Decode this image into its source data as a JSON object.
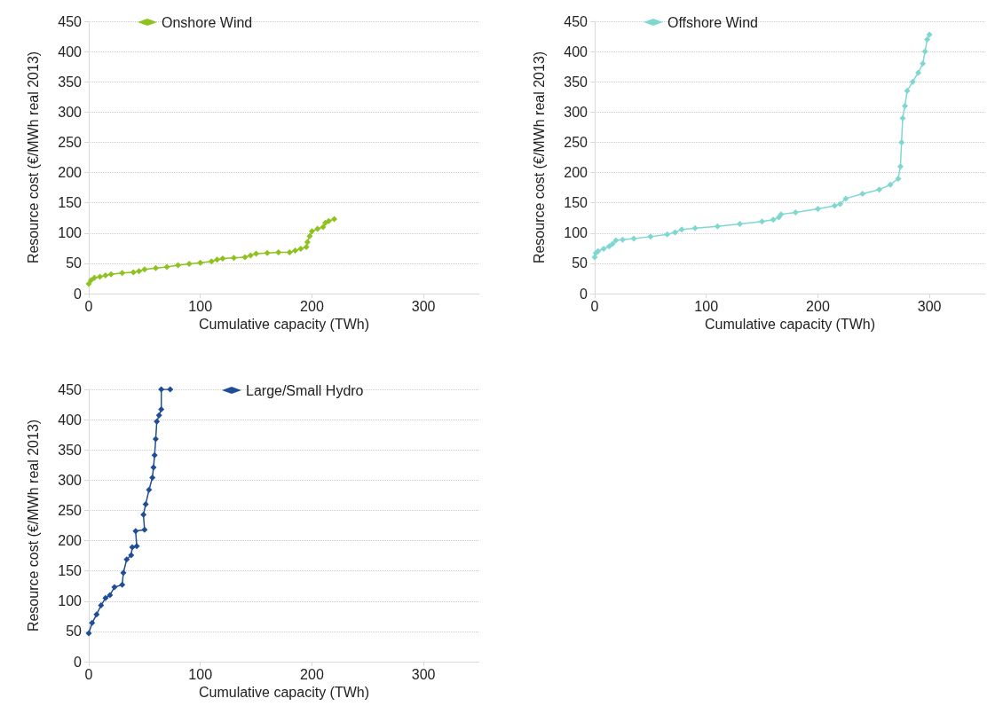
{
  "chart_data": [
    {
      "type": "line",
      "xlabel": "Cumulative capacity (TWh)",
      "ylabel": "Resource cost (€/MWh real 2013)",
      "xlim": [
        0,
        350
      ],
      "xticks": [
        0,
        100,
        200,
        300
      ],
      "ylim": [
        0,
        450
      ],
      "yticks": [
        0,
        50,
        100,
        150,
        200,
        250,
        300,
        350,
        400,
        450
      ],
      "grid": "y",
      "legend": "top left",
      "marker": "diamond",
      "line_style": "solid",
      "series": [
        {
          "name": "Onshore Wind",
          "color": "#8dc21f",
          "x": [
            0,
            2,
            5,
            10,
            15,
            20,
            30,
            40,
            45,
            50,
            60,
            70,
            80,
            90,
            100,
            110,
            115,
            120,
            130,
            140,
            145,
            150,
            160,
            170,
            180,
            185,
            190,
            195,
            196,
            198,
            200,
            205,
            210,
            212,
            215,
            220
          ],
          "values": [
            16,
            22,
            26,
            28,
            30,
            32,
            34,
            35,
            37,
            40,
            42,
            44,
            47,
            49,
            51,
            53,
            56,
            58,
            59,
            60,
            63,
            66,
            67,
            68,
            68,
            71,
            74,
            77,
            85,
            95,
            103,
            107,
            110,
            117,
            120,
            123
          ]
        }
      ]
    },
    {
      "type": "line",
      "xlabel": "Cumulative capacity (TWh)",
      "ylabel": "Resource cost (€/MWh real 2013)",
      "xlim": [
        0,
        350
      ],
      "xticks": [
        0,
        100,
        200,
        300
      ],
      "ylim": [
        0,
        450
      ],
      "yticks": [
        0,
        50,
        100,
        150,
        200,
        250,
        300,
        350,
        400,
        450
      ],
      "grid": "y",
      "legend": "top left",
      "marker": "diamond",
      "line_style": "solid",
      "series": [
        {
          "name": "Offshore Wind",
          "color": "#7fd8d0",
          "x": [
            0,
            1,
            3,
            8,
            13,
            16,
            19,
            25,
            35,
            50,
            65,
            72,
            78,
            90,
            110,
            130,
            150,
            160,
            165,
            167,
            180,
            200,
            215,
            220,
            225,
            240,
            255,
            265,
            272,
            274,
            275,
            276,
            278,
            280,
            285,
            290,
            294,
            296,
            298,
            300
          ],
          "values": [
            60,
            67,
            70,
            74,
            78,
            82,
            88,
            89,
            91,
            94,
            98,
            101,
            106,
            108,
            111,
            115,
            119,
            122,
            126,
            131,
            134,
            140,
            145,
            148,
            157,
            165,
            172,
            180,
            190,
            210,
            250,
            290,
            310,
            335,
            350,
            365,
            380,
            400,
            420,
            428
          ]
        }
      ]
    },
    {
      "type": "line",
      "xlabel": "Cumulative capacity (TWh)",
      "ylabel": "Resource cost (€/MWh real 2013)",
      "xlim": [
        0,
        350
      ],
      "xticks": [
        0,
        100,
        200,
        300
      ],
      "ylim": [
        0,
        450
      ],
      "yticks": [
        0,
        50,
        100,
        150,
        200,
        250,
        300,
        350,
        400,
        450
      ],
      "grid": "y",
      "legend": "top right",
      "marker": "diamond",
      "line_style": "solid",
      "series": [
        {
          "name": "Large/Small Hydro",
          "color": "#1f4e96",
          "x": [
            0,
            3,
            7,
            11,
            15,
            19,
            23,
            30,
            31,
            34,
            38,
            39,
            43,
            42,
            50,
            49,
            51,
            54,
            57,
            58,
            59,
            60,
            61,
            63,
            65,
            65,
            73
          ],
          "values": [
            47,
            64,
            78,
            93,
            105,
            110,
            123,
            127,
            147,
            169,
            176,
            189,
            191,
            216,
            218,
            243,
            260,
            284,
            304,
            321,
            341,
            368,
            397,
            407,
            417,
            450,
            450
          ]
        }
      ]
    }
  ]
}
